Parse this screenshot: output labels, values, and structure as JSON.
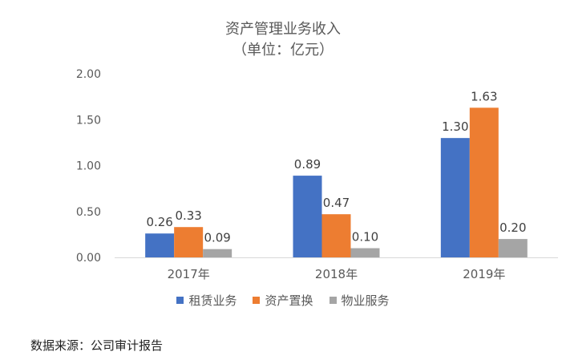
{
  "chart_data": {
    "type": "bar",
    "title": "资产管理业务收入",
    "subtitle": "（单位：亿元）",
    "categories": [
      "2017年",
      "2018年",
      "2019年"
    ],
    "series": [
      {
        "name": "租赁业务",
        "values": [
          0.26,
          0.89,
          1.3
        ],
        "color": "#4472C4"
      },
      {
        "name": "资产置换",
        "values": [
          0.33,
          0.47,
          1.63
        ],
        "color": "#ED7D31"
      },
      {
        "name": "物业服务",
        "values": [
          0.09,
          0.1,
          0.2
        ],
        "color": "#A5A5A5"
      }
    ],
    "ylim": [
      0,
      2.0
    ],
    "yticks": [
      "0.00",
      "0.50",
      "1.00",
      "1.50",
      "2.00"
    ],
    "grid": false,
    "legend_position": "bottom"
  },
  "source_note": "数据来源：公司审计报告"
}
